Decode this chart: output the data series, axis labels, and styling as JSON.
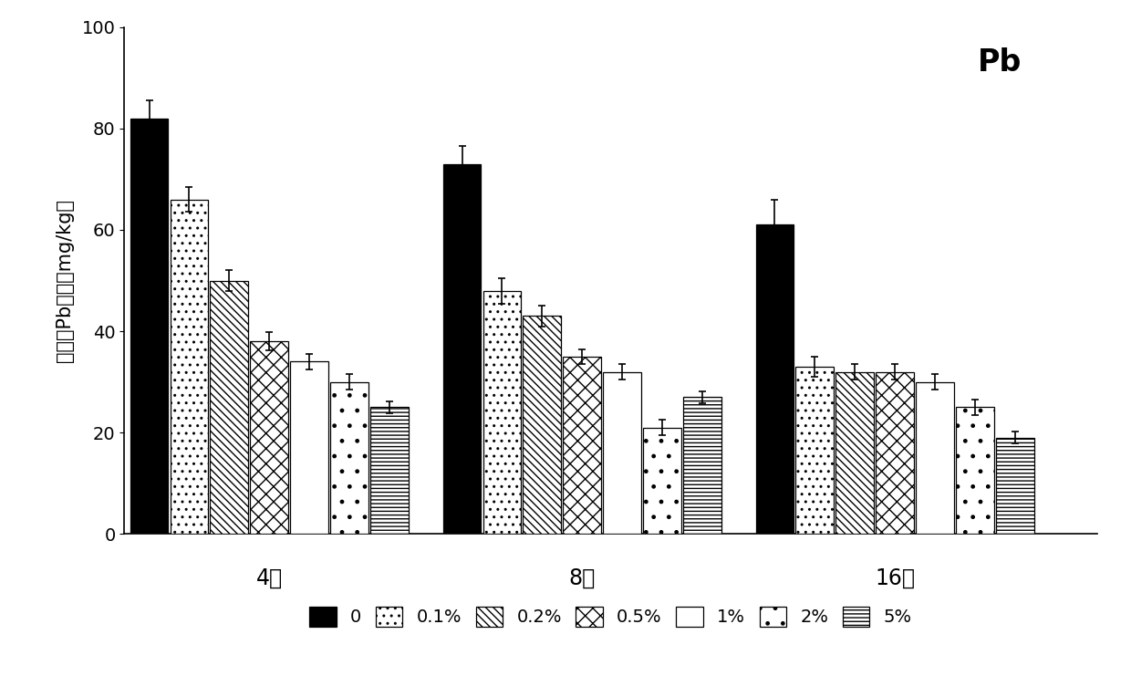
{
  "title": "Pb",
  "ylabel": "有效态Pb含量（mg/kg）",
  "groups": [
    "4周",
    "8周",
    "16周"
  ],
  "series_labels": [
    "0",
    "0.1%",
    "0.2%",
    "0.5%",
    "1%",
    "2%",
    "5%"
  ],
  "values": [
    [
      82,
      66,
      50,
      38,
      34,
      30,
      25
    ],
    [
      73,
      48,
      43,
      35,
      32,
      21,
      27
    ],
    [
      61,
      33,
      32,
      32,
      30,
      25,
      19
    ]
  ],
  "errors": [
    [
      3.5,
      2.5,
      2.0,
      1.8,
      1.5,
      1.5,
      1.2
    ],
    [
      3.5,
      2.5,
      2.0,
      1.5,
      1.5,
      1.5,
      1.2
    ],
    [
      5.0,
      2.0,
      1.5,
      1.5,
      1.5,
      1.5,
      1.2
    ]
  ],
  "ylim": [
    0,
    100
  ],
  "yticks": [
    0,
    20,
    40,
    60,
    80,
    100
  ],
  "bar_width": 0.1,
  "group_centers": [
    0.38,
    1.2,
    2.02
  ],
  "background_color": "#ffffff",
  "title_fontsize": 24,
  "label_fontsize": 15,
  "tick_fontsize": 14,
  "legend_fontsize": 14,
  "hatch_patterns": [
    "",
    "..",
    "\\\\\\\\",
    "xx",
    "",
    ".",
    "----"
  ],
  "facecolors": [
    "black",
    "white",
    "white",
    "white",
    "white",
    "white",
    "white"
  ]
}
